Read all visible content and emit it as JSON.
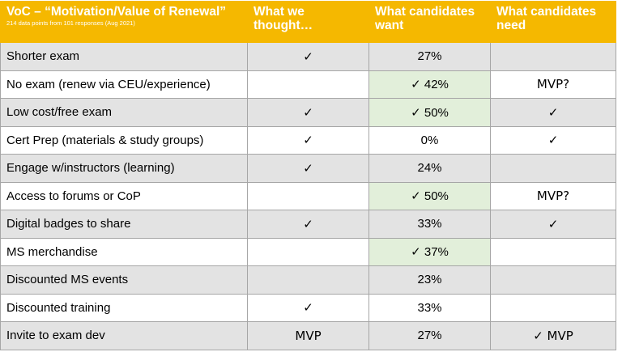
{
  "header": {
    "title": "VoC – “Motivation/Value of Renewal”",
    "subtitle": "214 data points from 101 responses (Aug 2021)",
    "col_thought": "What we thought…",
    "col_want": "What candidates want",
    "col_need": "What candidates need"
  },
  "colors": {
    "header_bg": "#F5B800",
    "stripe": "#E3E3E3",
    "highlight": "#E2EFDA"
  },
  "rows": [
    {
      "label": "Shorter exam",
      "thought": "✓",
      "want": "27%",
      "want_highlight": false,
      "need": ""
    },
    {
      "label": "No exam (renew via CEU/experience)",
      "thought": "",
      "want": "✓  42%",
      "want_highlight": true,
      "need": "MVP?"
    },
    {
      "label": "Low cost/free exam",
      "thought": "✓",
      "want": "✓  50%",
      "want_highlight": true,
      "need": "✓"
    },
    {
      "label": "Cert Prep (materials & study groups)",
      "thought": "✓",
      "want": "0%",
      "want_highlight": false,
      "need": "✓"
    },
    {
      "label": "Engage w/instructors (learning)",
      "thought": "✓",
      "want": "24%",
      "want_highlight": false,
      "need": ""
    },
    {
      "label": "Access to forums or CoP",
      "thought": "",
      "want": "✓  50%",
      "want_highlight": true,
      "need": "MVP?"
    },
    {
      "label": "Digital badges to share",
      "thought": "✓",
      "want": "33%",
      "want_highlight": false,
      "need": "✓"
    },
    {
      "label": "MS merchandise",
      "thought": "",
      "want": "✓  37%",
      "want_highlight": true,
      "need": ""
    },
    {
      "label": "Discounted MS events",
      "thought": "",
      "want": "23%",
      "want_highlight": false,
      "need": ""
    },
    {
      "label": "Discounted training",
      "thought": "✓",
      "want": "33%",
      "want_highlight": false,
      "need": ""
    },
    {
      "label": "Invite to exam dev",
      "thought": "MVP",
      "want": "27%",
      "want_highlight": false,
      "need": "✓ MVP"
    }
  ]
}
